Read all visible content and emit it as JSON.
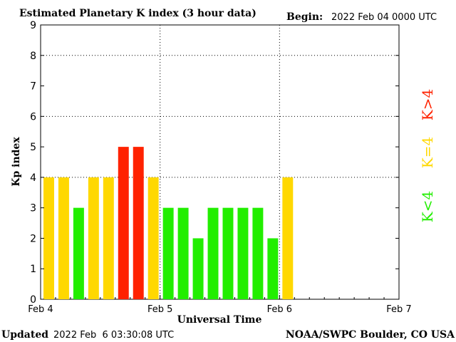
{
  "header": {
    "title": "Estimated Planetary K index (3 hour data)",
    "begin_label": "Begin:",
    "begin_value": "2022 Feb 04 0000 UTC"
  },
  "footer": {
    "updated_label": "Updated",
    "updated_value": "2022 Feb  6 03:30:08 UTC",
    "credit": "NOAA/SWPC Boulder, CO USA"
  },
  "legend": [
    {
      "label": "K<4",
      "color": "#22ee00"
    },
    {
      "label": "K=4",
      "color": "#ffd800"
    },
    {
      "label": "K>4",
      "color": "#ff2200"
    }
  ],
  "chart_data": {
    "type": "bar",
    "title": "Estimated Planetary K index (3 hour data)",
    "xlabel": "Universal Time",
    "ylabel": "Kp index",
    "ylim": [
      0,
      9
    ],
    "yticks": [
      "0",
      "1",
      "2",
      "3",
      "4",
      "5",
      "6",
      "7",
      "8",
      "9"
    ],
    "xticks": [
      "Feb 4",
      "Feb 5",
      "Feb 6",
      "Feb 7"
    ],
    "xlim_days": 3,
    "bins_per_day": 8,
    "grid": "dotted, at each day and at Kp 4, 6, 8",
    "colors": {
      "below4": "#22ee00",
      "equal4": "#ffd800",
      "above4": "#ff2200"
    },
    "values": [
      4,
      4,
      3,
      4,
      4,
      5,
      5,
      4,
      3,
      3,
      2,
      3,
      3,
      3,
      3,
      2,
      4
    ]
  }
}
